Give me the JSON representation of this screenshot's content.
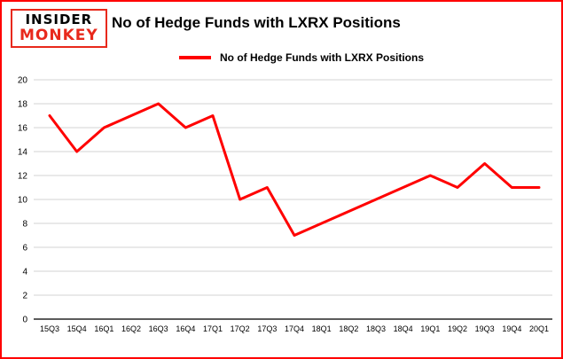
{
  "logo": {
    "line1": "INSIDER",
    "line2": "MONKEY"
  },
  "header": {
    "title": "No of Hedge Funds with LXRX Positions"
  },
  "legend": {
    "label": "No of Hedge Funds with LXRX Positions"
  },
  "colors": {
    "accent": "#ff0000",
    "grid": "#d3d3d3",
    "axis": "#262626",
    "text": "#000000"
  },
  "chart_data": {
    "type": "line",
    "title": "No of Hedge Funds with LXRX Positions",
    "categories": [
      "15Q3",
      "15Q4",
      "16Q1",
      "16Q2",
      "16Q3",
      "16Q4",
      "17Q1",
      "17Q2",
      "17Q3",
      "17Q4",
      "18Q1",
      "18Q2",
      "18Q3",
      "18Q4",
      "19Q1",
      "19Q2",
      "19Q3",
      "19Q4",
      "20Q1"
    ],
    "series": [
      {
        "name": "No of Hedge Funds with LXRX Positions",
        "color": "#ff0000",
        "values": [
          17,
          14,
          16,
          17,
          18,
          16,
          17,
          10,
          11,
          7,
          8,
          9,
          10,
          11,
          12,
          11,
          13,
          11,
          11
        ]
      }
    ],
    "xlabel": "",
    "ylabel": "",
    "ylim": [
      0,
      20
    ],
    "yticks": [
      0,
      2,
      4,
      6,
      8,
      10,
      12,
      14,
      16,
      18,
      20
    ],
    "grid": true,
    "legend_position": "top"
  }
}
